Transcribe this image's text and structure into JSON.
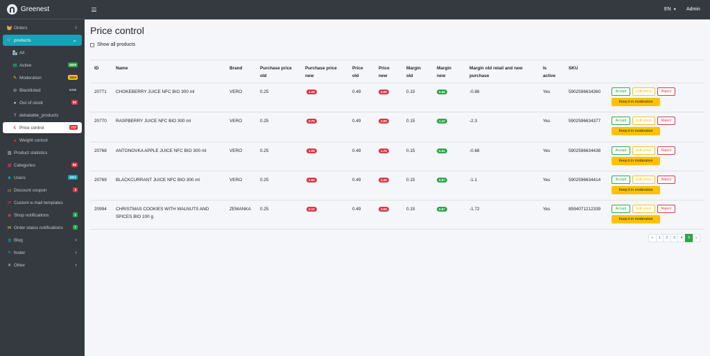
{
  "brand": {
    "name": "Greenest"
  },
  "topbar": {
    "language": "EN",
    "user": "Admin"
  },
  "sidebar": {
    "items": [
      {
        "label": "Orders",
        "icon": "basket-icon",
        "chevron": "‹"
      },
      {
        "label": "products",
        "icon": "cart-icon",
        "chevron": "⌄"
      },
      {
        "label": "All",
        "icon": "store-icon"
      },
      {
        "label": "Active",
        "icon": "box-icon",
        "badge": "4829",
        "badge_color": "#28a745",
        "badge_text": "#fff"
      },
      {
        "label": "Moderation",
        "icon": "pencil-icon",
        "badge": "1624",
        "badge_color": "#ffc107",
        "badge_text": "#212529"
      },
      {
        "label": "Blacklisted",
        "icon": "ban-icon",
        "badge": "6339",
        "badge_color": "transparent",
        "badge_text": "#c2c7d0"
      },
      {
        "label": "Out of stock",
        "icon": "circle-icon",
        "badge": "52",
        "badge_color": "#dc3545",
        "badge_text": "#fff"
      },
      {
        "label": "debatable_products",
        "icon": "question-icon"
      },
      {
        "label": "Price control",
        "icon": "euro-icon",
        "badge": "717",
        "badge_color": "#dc3545",
        "badge_text": "#fff"
      },
      {
        "label": "Weight control",
        "icon": "weight-icon"
      },
      {
        "label": "Product statistics",
        "icon": "chart-icon"
      },
      {
        "label": "Categories",
        "icon": "tags-icon",
        "badge": "86",
        "badge_color": "#dc3545",
        "badge_text": "#fff"
      },
      {
        "label": "Users",
        "icon": "users-icon",
        "badge": "1821",
        "badge_color": "#17a2b8",
        "badge_text": "#fff"
      },
      {
        "label": "Discount coupon",
        "icon": "ticket-icon",
        "badge": "3",
        "badge_color": "#dc3545",
        "badge_text": "#fff"
      },
      {
        "label": "Custom e-mail templates",
        "icon": "mail-icon"
      },
      {
        "label": "Shop notifications",
        "icon": "bell-icon",
        "badge": "1",
        "badge_color": "#28a745",
        "badge_text": "#fff"
      },
      {
        "label": "Order status notifications",
        "icon": "envelope-icon",
        "badge": "7",
        "badge_color": "#28a745",
        "badge_text": "#fff"
      },
      {
        "label": "Blog",
        "icon": "globe-icon",
        "chevron": "‹"
      },
      {
        "label": "footer",
        "icon": "edit-icon",
        "chevron": "‹"
      },
      {
        "label": "Other",
        "icon": "tools-icon",
        "chevron": "‹"
      }
    ]
  },
  "page": {
    "title": "Price control",
    "show_all_label": "Show all products"
  },
  "table": {
    "headers": {
      "id": "ID",
      "name": "Name",
      "brand": "Brand",
      "purchase_old": "Purchase price old",
      "purchase_new": "Purchase price new",
      "price_old": "Price old",
      "price_new": "Price new",
      "margin_old": "Margin old",
      "margin_new": "Margin new",
      "margin_retail": "Margin old retail and new purchase",
      "is_active": "Is active",
      "sku": "SKU"
    },
    "rows": [
      {
        "id": "20771",
        "name": "CHOKEBERRY JUICE NFC BIO 300 ml",
        "brand": "VERO",
        "purchase_old": "0.25",
        "purchase_new": "1.26",
        "price_old": "0.49",
        "price_new": "3.09",
        "margin_old": "0.15",
        "margin_new": "0.46",
        "margin_retail": "-0.86",
        "is_active": "Yes",
        "sku": "5902596634360"
      },
      {
        "id": "20770",
        "name": "RASPBERRY JUICE NFC BIO 300 ml",
        "brand": "VERO",
        "purchase_old": "0.25",
        "purchase_new": "2.70",
        "price_old": "0.49",
        "price_new": "4.59",
        "margin_old": "0.15",
        "margin_new": "1.12",
        "margin_retail": "-2.3",
        "is_active": "Yes",
        "sku": "5902596634377"
      },
      {
        "id": "20768",
        "name": "ANTONOVKA APPLE JUICE NFC BIO 300 ml",
        "brand": "VERO",
        "purchase_old": "0.25",
        "purchase_new": "1.08",
        "price_old": "0.49",
        "price_new": "1.79",
        "margin_old": "0.15",
        "margin_new": "0.41",
        "margin_retail": "-0.68",
        "is_active": "Yes",
        "sku": "5902596634438"
      },
      {
        "id": "20769",
        "name": "BLACKCURRANT JUICE NFC BIO 300 ml",
        "brand": "VERO",
        "purchase_old": "0.25",
        "purchase_new": "1.50",
        "price_old": "0.49",
        "price_new": "2.49",
        "margin_old": "0.15",
        "margin_new": "0.57",
        "margin_retail": "-1.1",
        "is_active": "Yes",
        "sku": "5902596634414"
      },
      {
        "id": "20994",
        "name": "CHRISTMAS COOKIES WITH WALNUTS AND SPICES BIO 100 g",
        "brand": "ZEMANKA",
        "purchase_old": "0.25",
        "purchase_new": "2.12",
        "price_old": "0.49",
        "price_new": "3.59",
        "margin_old": "0.15",
        "margin_new": "0.87",
        "margin_retail": "-1.72",
        "is_active": "Yes",
        "sku": "8594071212339"
      }
    ],
    "actions": {
      "accept": "Accept",
      "edit": "Edit price",
      "reject": "Reject",
      "keep": "Keep it in moderation"
    }
  },
  "pagination": {
    "prev": "«",
    "pages": [
      "1",
      "2",
      "3",
      "4",
      "5"
    ],
    "active": "5",
    "next": "»"
  },
  "colors": {
    "accent": "#17a2b8",
    "danger": "#dc3545",
    "success": "#28a745",
    "warning": "#ffc107",
    "dark": "#343a40"
  }
}
